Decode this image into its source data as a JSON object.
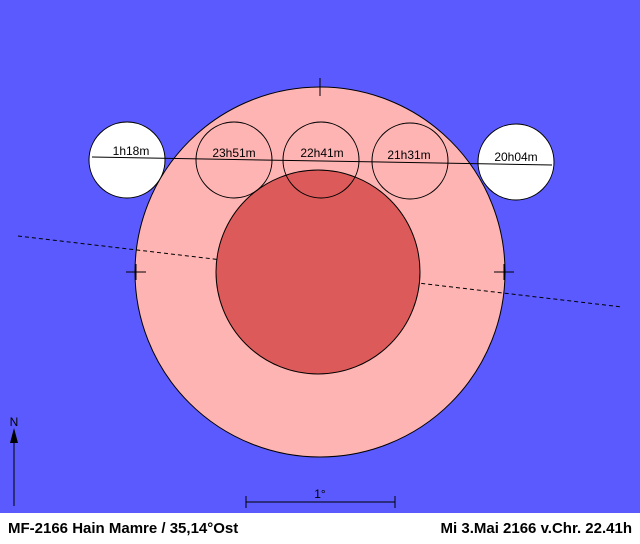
{
  "background_color": "#5a5aff",
  "colors": {
    "penumbra": "#ffb4b4",
    "umbra": "#dc5a5a",
    "moon": "#ffffff",
    "outline": "#000000"
  },
  "moon_positions": [
    {
      "time": "1h18m",
      "shaded": false
    },
    {
      "time": "23h51m",
      "shaded": true
    },
    {
      "time": "22h41m",
      "shaded": true
    },
    {
      "time": "21h31m",
      "shaded": true
    },
    {
      "time": "20h04m",
      "shaded": false
    }
  ],
  "scale_label": "1°",
  "north_label": "N",
  "footer": {
    "left": "MF-2166  Hain Mamre / 35,14°Ost",
    "right": "Mi 3.Mai 2166 v.Chr.  22.41h"
  }
}
